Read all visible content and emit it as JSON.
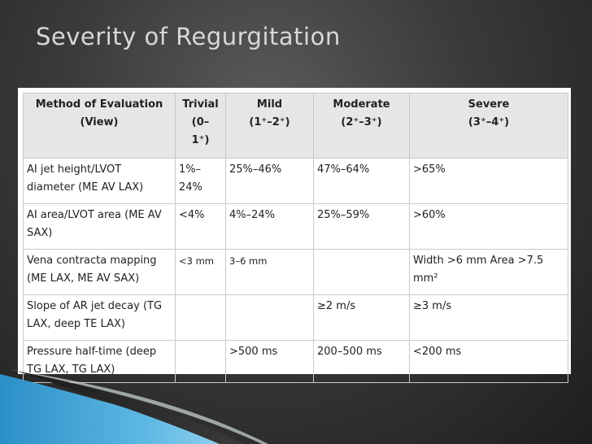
{
  "slide": {
    "title": "Severity of Regurgitation"
  },
  "table": {
    "headers": [
      {
        "line1": "Method of Evaluation",
        "line2": "(View)"
      },
      {
        "line1": "Trivial",
        "line2": "(0–",
        "line3": "1⁺)"
      },
      {
        "line1": "Mild",
        "line2": "(1⁺–2⁺)"
      },
      {
        "line1": "Moderate",
        "line2": "(2⁺–3⁺)"
      },
      {
        "line1": "Severe",
        "line2": "(3⁺–4⁺)"
      }
    ],
    "rows": [
      {
        "method": "AI jet height/LVOT diameter (ME AV LAX)",
        "trivial": "1%–24%",
        "mild": "25%–46%",
        "moderate": "47%–64%",
        "severe": ">65%"
      },
      {
        "method": "AI area/LVOT area (ME AV SAX)",
        "trivial": "<4%",
        "mild": "4%–24%",
        "moderate": "25%–59%",
        "severe": ">60%"
      },
      {
        "method": "Vena contracta mapping (ME LAX, ME AV SAX)",
        "trivial": "<3 mm",
        "mild": "3–6 mm",
        "moderate": "",
        "severe": "Width >6 mm Area >7.5 mm²"
      },
      {
        "method": "Slope of AR jet decay (TG LAX, deep TE LAX)",
        "trivial": "",
        "mild": "",
        "moderate": "≥2 m/s",
        "severe": "≥3 m/s"
      },
      {
        "method": "Pressure half-time (deep TG LAX, TG LAX)",
        "trivial": "",
        "mild": ">500 ms",
        "moderate": "200–500 ms",
        "severe": "<200 ms"
      }
    ]
  }
}
